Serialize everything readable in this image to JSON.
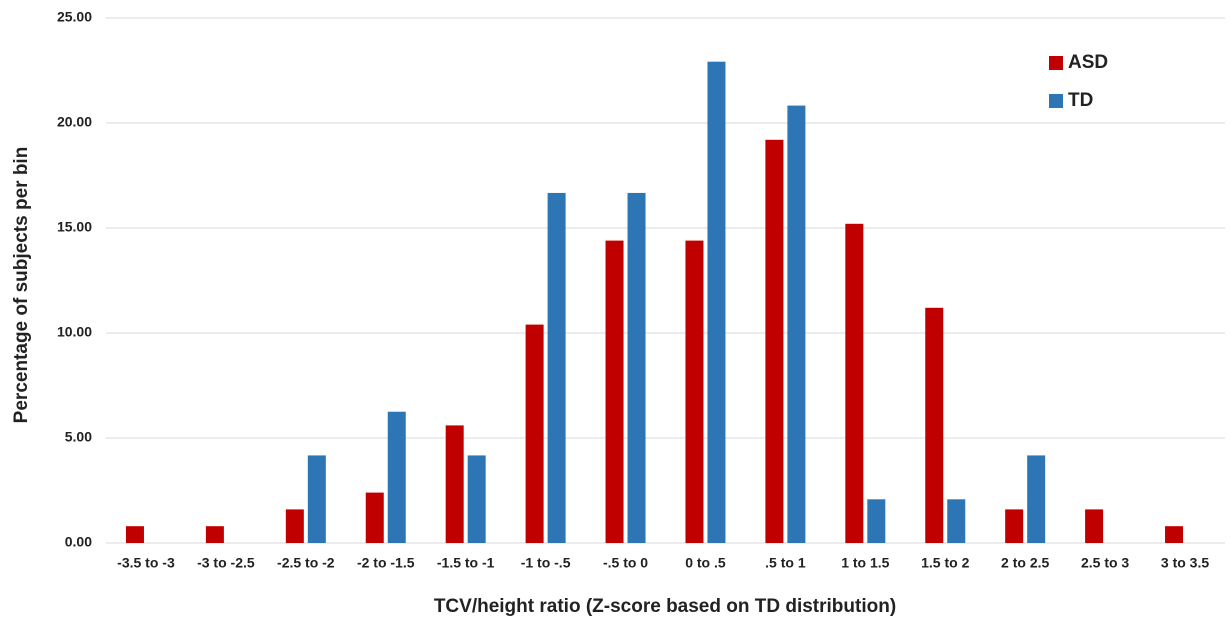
{
  "chart_data": {
    "type": "bar",
    "x_label": "TCV/height ratio (Z-score based on TD distribution)",
    "y_label": "Percentage of subjects per bin",
    "categories": [
      "-3.5 to -3",
      "-3 to -2.5",
      "-2.5 to -2",
      "-2 to -1.5",
      "-1.5 to -1",
      "-1 to -.5",
      "-.5 to 0",
      "0 to .5",
      ".5 to 1",
      "1 to 1.5",
      "1.5 to 2",
      "2 to 2.5",
      "2.5 to 3",
      "3 to 3.5"
    ],
    "series": [
      {
        "name": "ASD",
        "color": "#c00000",
        "values": [
          0.8,
          0.8,
          1.6,
          2.4,
          5.6,
          10.4,
          14.4,
          14.4,
          19.2,
          15.2,
          11.2,
          1.6,
          1.6,
          0.8
        ]
      },
      {
        "name": "TD",
        "color": "#2e75b6",
        "values": [
          0,
          0,
          4.17,
          6.25,
          4.17,
          16.67,
          16.67,
          22.92,
          20.83,
          2.08,
          2.08,
          4.17,
          0,
          0
        ]
      }
    ],
    "ylim": [
      0,
      25
    ],
    "yticks": [
      {
        "value": 0,
        "label": "0.00"
      },
      {
        "value": 5,
        "label": "5.00"
      },
      {
        "value": 10,
        "label": "10.00"
      },
      {
        "value": 15,
        "label": "15.00"
      },
      {
        "value": 20,
        "label": "20.00"
      },
      {
        "value": 25,
        "label": "25.00"
      }
    ],
    "grid": true,
    "legend": "top-right"
  }
}
